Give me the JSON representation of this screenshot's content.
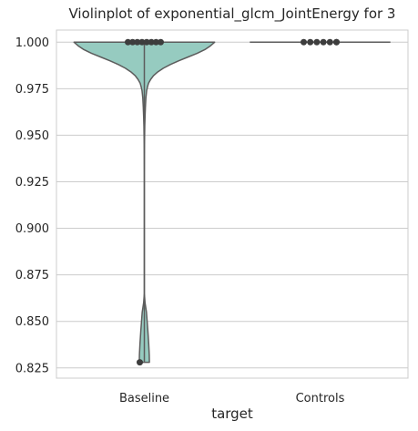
{
  "chart_data": {
    "type": "violin",
    "title": "Violinplot of exponential_glcm_JointEnergy for 3",
    "xlabel": "target",
    "ylabel": "",
    "categories": [
      "Baseline",
      "Controls"
    ],
    "ylim": [
      0.8195,
      1.0065
    ],
    "yticks": [
      "0.825",
      "0.850",
      "0.875",
      "0.900",
      "0.925",
      "0.950",
      "0.975",
      "1.000"
    ],
    "grid": "horizontal",
    "colors": {
      "fill": "#96cbc0",
      "edge": "#5c5c5c",
      "grid": "#cccccc",
      "point": "#3d3d3d"
    },
    "violins": [
      {
        "category": "Baseline",
        "profile": [
          [
            1.0,
            1.0
          ],
          [
            0.998,
            0.94
          ],
          [
            0.996,
            0.86
          ],
          [
            0.994,
            0.75
          ],
          [
            0.992,
            0.62
          ],
          [
            0.99,
            0.49
          ],
          [
            0.988,
            0.37
          ],
          [
            0.986,
            0.27
          ],
          [
            0.984,
            0.19
          ],
          [
            0.982,
            0.13
          ],
          [
            0.98,
            0.09
          ],
          [
            0.978,
            0.06
          ],
          [
            0.976,
            0.045
          ],
          [
            0.974,
            0.033
          ],
          [
            0.97,
            0.022
          ],
          [
            0.965,
            0.015
          ],
          [
            0.96,
            0.01
          ],
          [
            0.955,
            0.006
          ],
          [
            0.95,
            0.004
          ],
          [
            0.945,
            0.002
          ],
          [
            0.94,
            0.001
          ],
          [
            0.93,
            0.0
          ],
          [
            0.865,
            0.0
          ],
          [
            0.86,
            0.01
          ],
          [
            0.855,
            0.03
          ],
          [
            0.85,
            0.04
          ],
          [
            0.845,
            0.05
          ],
          [
            0.838,
            0.062
          ],
          [
            0.832,
            0.07
          ],
          [
            0.828,
            0.072
          ]
        ],
        "points": [
          1.0,
          1.0,
          1.0,
          1.0,
          1.0,
          1.0,
          1.0,
          1.0,
          0.828
        ]
      },
      {
        "category": "Controls",
        "profile": [
          [
            1.0,
            1.0
          ]
        ],
        "points": [
          1.0,
          1.0,
          1.0,
          1.0,
          1.0,
          1.0,
          1.0
        ]
      }
    ]
  }
}
